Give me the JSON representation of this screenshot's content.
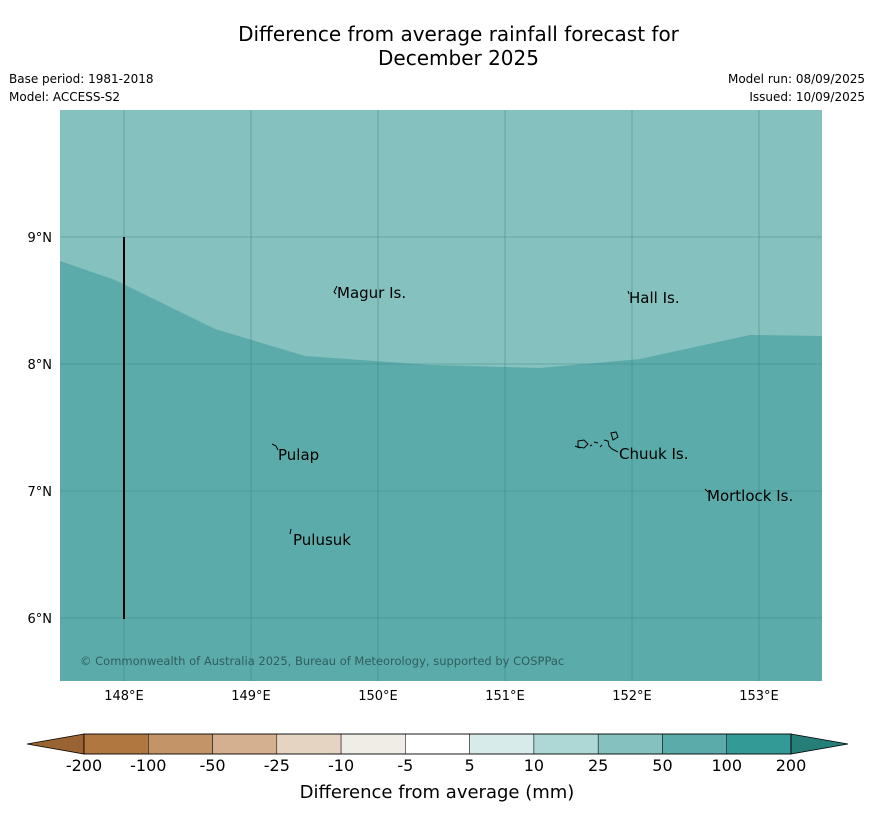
{
  "title_line1": "Difference from average rainfall forecast for",
  "title_line2": "December 2025",
  "base_period": "Base period: 1981-2018",
  "model": "Model: ACCESS-S2",
  "model_run": "Model run: 08/09/2025",
  "issued": "Issued: 10/09/2025",
  "copyright": "© Commonwealth of Australia 2025, Bureau of Meteorology, supported by COSPPac",
  "lat_labels": [
    "9°N",
    "8°N",
    "7°N",
    "6°N"
  ],
  "lon_labels": [
    "148°E",
    "149°E",
    "150°E",
    "151°E",
    "152°E",
    "153°E"
  ],
  "places": [
    "Magur Is.",
    "Hall Is.",
    "Pulap",
    "Chuuk Is.",
    "Mortlock Is.",
    "Pulusuk"
  ],
  "colorbar_ticks": [
    "-200",
    "-100",
    "-50",
    "-25",
    "-10",
    "-5",
    "5",
    "10",
    "25",
    "50",
    "100",
    "200"
  ],
  "colorbar_colors": [
    "#b07840",
    "#c29468",
    "#d4b090",
    "#e6d4c2",
    "#f0ece6",
    "#ffffff",
    "#d6ebea",
    "#add8d5",
    "#84c1bf",
    "#5aabaa",
    "#339a96"
  ],
  "colorbar_under_color": "#9a6432",
  "colorbar_over_color": "#267e79",
  "colorbar_label": "Difference from average (mm)",
  "region_colors": {
    "category_25_50": "#84c1bf",
    "category_50_100": "#5aabaa"
  }
}
